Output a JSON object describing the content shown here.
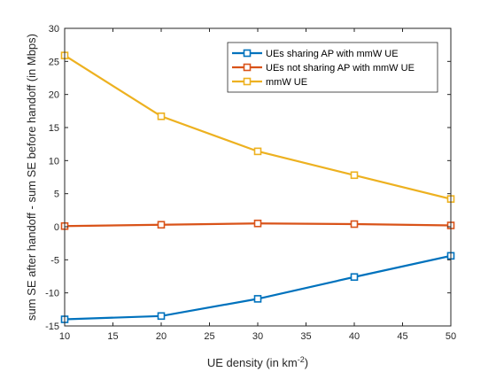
{
  "chart_data": {
    "type": "line",
    "title": "",
    "xlabel": "UE density (in km",
    "xlabel_sup": "-2",
    "xlabel_suffix": ")",
    "ylabel": "sum SE after handoff - sum SE before handoff (in Mbps)",
    "xlim": [
      10,
      50
    ],
    "ylim": [
      -15,
      30
    ],
    "xticks": [
      10,
      15,
      20,
      25,
      30,
      35,
      40,
      45,
      50
    ],
    "yticks": [
      -15,
      -10,
      -5,
      0,
      5,
      10,
      15,
      20,
      25,
      30
    ],
    "x": [
      10,
      20,
      30,
      40,
      50
    ],
    "grid": false,
    "legend_position": "top-right",
    "marker": "square",
    "series": [
      {
        "name": "UEs sharing AP with mmW UE",
        "color": "#0072BD",
        "values": [
          -14.0,
          -13.5,
          -10.9,
          -7.6,
          -4.4
        ]
      },
      {
        "name": "UEs not sharing AP with mmW UE",
        "color": "#D95319",
        "values": [
          0.1,
          0.3,
          0.5,
          0.4,
          0.2
        ]
      },
      {
        "name": "mmW UE",
        "color": "#EDB120",
        "values": [
          25.9,
          16.7,
          11.4,
          7.8,
          4.2
        ]
      }
    ]
  }
}
